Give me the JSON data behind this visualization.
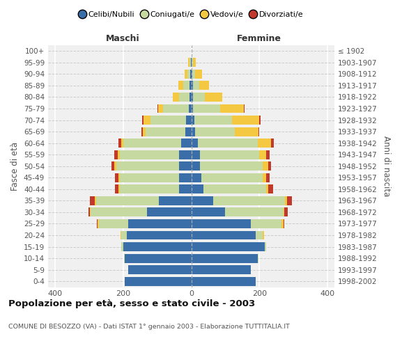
{
  "age_groups": [
    "0-4",
    "5-9",
    "10-14",
    "15-19",
    "20-24",
    "25-29",
    "30-34",
    "35-39",
    "40-44",
    "45-49",
    "50-54",
    "55-59",
    "60-64",
    "65-69",
    "70-74",
    "75-79",
    "80-84",
    "85-89",
    "90-94",
    "95-99",
    "100+"
  ],
  "birth_years": [
    "1998-2002",
    "1993-1997",
    "1988-1992",
    "1983-1987",
    "1978-1982",
    "1973-1977",
    "1968-1972",
    "1963-1967",
    "1958-1962",
    "1953-1957",
    "1948-1952",
    "1943-1947",
    "1938-1942",
    "1933-1937",
    "1928-1932",
    "1923-1927",
    "1918-1922",
    "1913-1917",
    "1908-1912",
    "1903-1907",
    "≤ 1902"
  ],
  "males": {
    "celibi": [
      195,
      185,
      195,
      200,
      190,
      185,
      130,
      95,
      35,
      35,
      35,
      35,
      30,
      18,
      15,
      8,
      5,
      5,
      3,
      2,
      0
    ],
    "coniugati": [
      0,
      0,
      2,
      5,
      15,
      85,
      165,
      185,
      175,
      175,
      185,
      175,
      170,
      115,
      105,
      75,
      30,
      18,
      8,
      3,
      0
    ],
    "vedovi": [
      0,
      0,
      0,
      0,
      3,
      5,
      2,
      3,
      3,
      3,
      5,
      5,
      5,
      10,
      20,
      15,
      20,
      15,
      8,
      5,
      0
    ],
    "divorziati": [
      0,
      0,
      0,
      0,
      0,
      2,
      5,
      15,
      10,
      10,
      8,
      10,
      8,
      3,
      5,
      2,
      0,
      0,
      0,
      0,
      0
    ]
  },
  "females": {
    "nubili": [
      190,
      175,
      195,
      215,
      190,
      175,
      100,
      65,
      35,
      30,
      25,
      25,
      20,
      12,
      10,
      5,
      5,
      5,
      3,
      2,
      0
    ],
    "coniugate": [
      0,
      0,
      2,
      5,
      20,
      90,
      170,
      210,
      185,
      180,
      185,
      175,
      175,
      115,
      110,
      80,
      35,
      18,
      8,
      3,
      0
    ],
    "vedove": [
      0,
      0,
      0,
      0,
      3,
      5,
      3,
      5,
      5,
      10,
      15,
      20,
      40,
      70,
      80,
      70,
      50,
      30,
      20,
      8,
      2
    ],
    "divorziate": [
      0,
      0,
      0,
      0,
      0,
      3,
      10,
      15,
      15,
      10,
      8,
      10,
      8,
      3,
      3,
      2,
      0,
      0,
      0,
      0,
      0
    ]
  },
  "colors": {
    "celibi": "#3a6ea8",
    "coniugati": "#c5d9a0",
    "vedovi": "#f5c842",
    "divorziati": "#c0392b"
  },
  "legend_labels": [
    "Celibi/Nubili",
    "Coniugati/e",
    "Vedovi/e",
    "Divorziati/e"
  ],
  "xlim": 420,
  "title": "Popolazione per età, sesso e stato civile - 2003",
  "subtitle": "COMUNE DI BESOZZO (VA) - Dati ISTAT 1° gennaio 2003 - Elaborazione TUTTITALIA.IT",
  "ylabel_left": "Fasce di età",
  "ylabel_right": "Anni di nascita",
  "xlabel_left": "Maschi",
  "xlabel_right": "Femmine"
}
